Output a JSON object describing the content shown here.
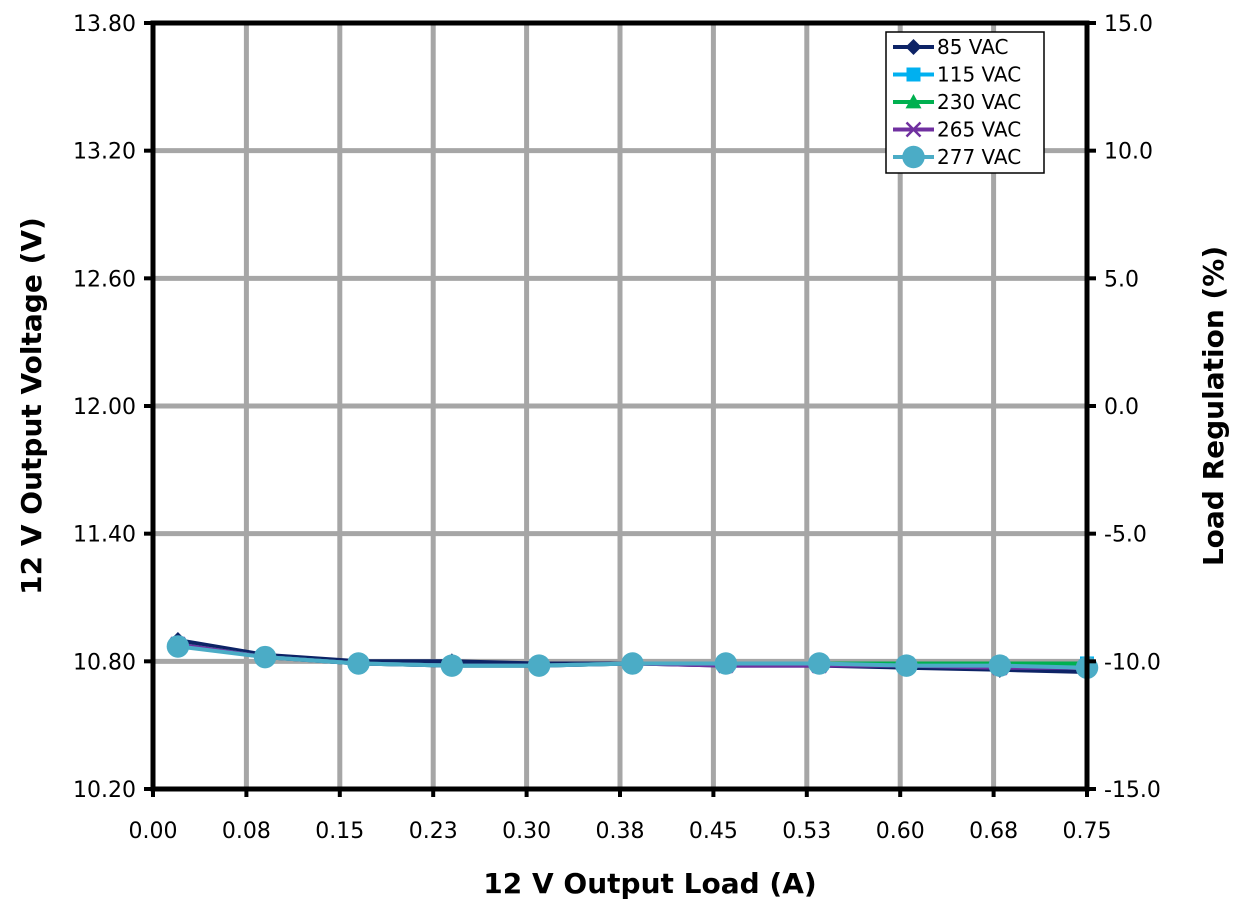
{
  "chart_data": {
    "type": "line",
    "title": "",
    "xlabel": "12 V Output Load (A)",
    "ylabel": "12 V Output Voltage (V)",
    "y2label": "Load Regulation (%)",
    "xlim": [
      0,
      0.75
    ],
    "ylim": [
      10.2,
      13.8
    ],
    "y2lim": [
      -15,
      15
    ],
    "x_ticks": [
      "0.00",
      "0.08",
      "0.15",
      "0.23",
      "0.30",
      "0.38",
      "0.45",
      "0.53",
      "0.60",
      "0.68",
      "0.75"
    ],
    "y_ticks": [
      "10.20",
      "10.80",
      "11.40",
      "12.00",
      "12.60",
      "13.20",
      "13.80"
    ],
    "y2_ticks": [
      "-15.0",
      "-10.0",
      "-5.0",
      "0.0",
      "5.0",
      "10.0",
      "15.0"
    ],
    "grid": true,
    "legend_position": "top-right",
    "x": [
      0.02,
      0.09,
      0.165,
      0.24,
      0.31,
      0.385,
      0.46,
      0.535,
      0.605,
      0.68,
      0.75
    ],
    "series": [
      {
        "name": "85 VAC",
        "color": "#0d2366",
        "marker": "diamond",
        "values": [
          10.9,
          10.83,
          10.8,
          10.8,
          10.79,
          10.79,
          10.78,
          10.78,
          10.77,
          10.76,
          10.75
        ]
      },
      {
        "name": "115 VAC",
        "color": "#00b0f0",
        "marker": "square",
        "values": [
          10.88,
          10.82,
          10.79,
          10.78,
          10.78,
          10.79,
          10.79,
          10.79,
          10.79,
          10.79,
          10.79
        ]
      },
      {
        "name": "230 VAC",
        "color": "#00b050",
        "marker": "triangle",
        "values": [
          10.88,
          10.82,
          10.79,
          10.78,
          10.78,
          10.79,
          10.79,
          10.79,
          10.79,
          10.79,
          10.79
        ]
      },
      {
        "name": "265 VAC",
        "color": "#7030a0",
        "marker": "x",
        "values": [
          10.88,
          10.82,
          10.79,
          10.78,
          10.78,
          10.79,
          10.78,
          10.78,
          10.78,
          10.77,
          10.77
        ]
      },
      {
        "name": "277 VAC",
        "color": "#4bacc6",
        "marker": "circle",
        "values": [
          10.87,
          10.82,
          10.79,
          10.78,
          10.78,
          10.79,
          10.79,
          10.79,
          10.78,
          10.78,
          10.77
        ]
      }
    ]
  }
}
